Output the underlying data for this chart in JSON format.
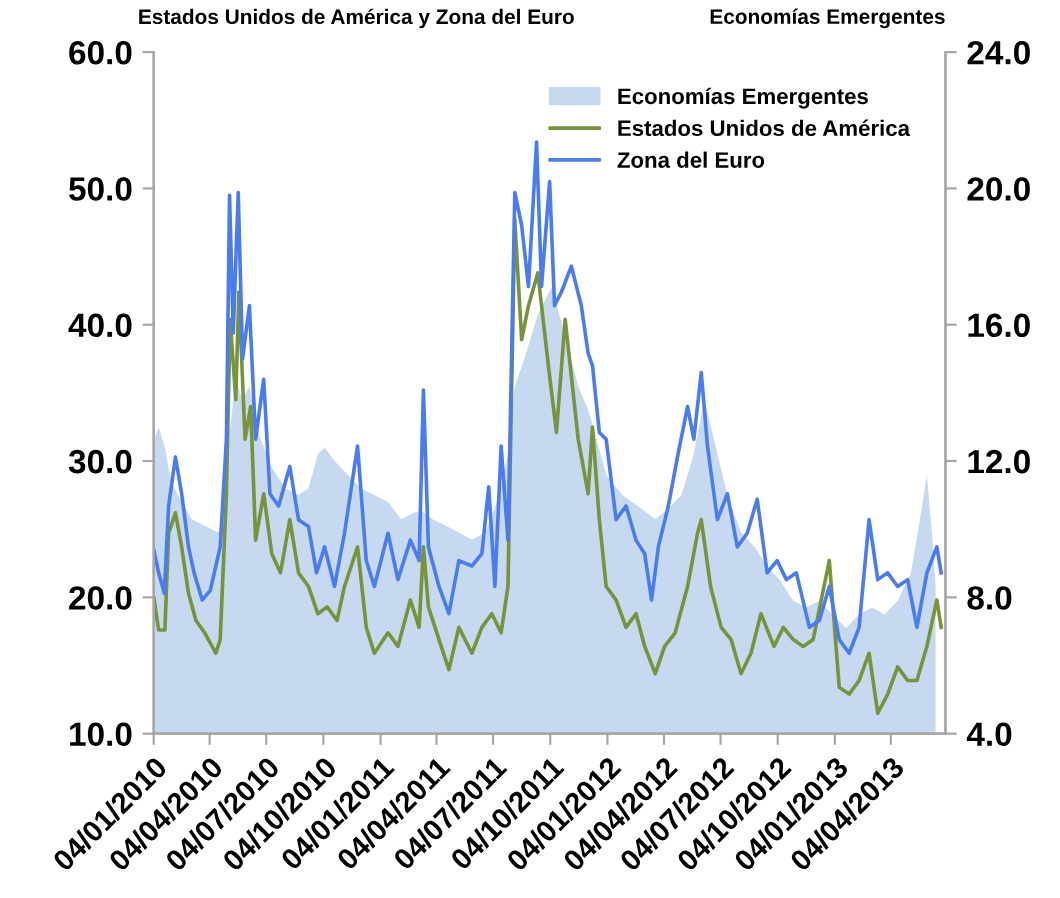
{
  "chart_data": {
    "type": "line",
    "ylabel": "Estados Unidos de América y Zona del Euro",
    "y2label": "Economías Emergentes",
    "xlim": [
      "2010-01-04",
      "2013-07-01"
    ],
    "xticks": [
      {
        "value": "2010-01-04",
        "label": "04/01/2010"
      },
      {
        "value": "2010-04-04",
        "label": "04/04/2010"
      },
      {
        "value": "2010-07-04",
        "label": "04/07/2010"
      },
      {
        "value": "2010-10-04",
        "label": "04/10/2010"
      },
      {
        "value": "2011-01-04",
        "label": "04/01/2011"
      },
      {
        "value": "2011-04-04",
        "label": "04/04/2011"
      },
      {
        "value": "2011-07-04",
        "label": "04/07/2011"
      },
      {
        "value": "2011-10-04",
        "label": "04/10/2011"
      },
      {
        "value": "2012-01-04",
        "label": "04/01/2012"
      },
      {
        "value": "2012-04-04",
        "label": "04/04/2012"
      },
      {
        "value": "2012-07-04",
        "label": "04/07/2012"
      },
      {
        "value": "2012-10-04",
        "label": "04/10/2012"
      },
      {
        "value": "2013-01-04",
        "label": "04/01/2013"
      },
      {
        "value": "2013-04-04",
        "label": "04/04/2013"
      }
    ],
    "ylim": [
      10,
      60
    ],
    "yticks": [
      {
        "value": 10,
        "label": "10.0"
      },
      {
        "value": 20,
        "label": "20.0"
      },
      {
        "value": 30,
        "label": "30.0"
      },
      {
        "value": 40,
        "label": "40.0"
      },
      {
        "value": 50,
        "label": "50.0"
      },
      {
        "value": 60,
        "label": "60.0"
      }
    ],
    "y2lim": [
      4,
      24
    ],
    "y2ticks": [
      {
        "value": 4,
        "label": "4.0"
      },
      {
        "value": 8,
        "label": "8.0"
      },
      {
        "value": 12,
        "label": "12.0"
      },
      {
        "value": 16,
        "label": "16.0"
      },
      {
        "value": 20,
        "label": "20.0"
      },
      {
        "value": 24,
        "label": "24.0"
      }
    ],
    "grid": false,
    "legend": "top right",
    "marker": "none",
    "line_style": "solid",
    "series": [
      {
        "name": "Economías Emergentes",
        "type": "area",
        "axis": "y2",
        "color": "#c6d9f0",
        "x": [
          "2010-01-04",
          "2010-01-12",
          "2010-01-22",
          "2010-02-01",
          "2010-02-18",
          "2010-03-06",
          "2010-03-27",
          "2010-04-18",
          "2010-04-28",
          "2010-05-06",
          "2010-05-16",
          "2010-05-27",
          "2010-06-07",
          "2010-06-22",
          "2010-07-13",
          "2010-08-04",
          "2010-08-25",
          "2010-09-10",
          "2010-09-25",
          "2010-10-06",
          "2010-10-22",
          "2010-11-12",
          "2010-12-03",
          "2010-12-25",
          "2011-01-16",
          "2011-02-06",
          "2011-02-28",
          "2011-03-14",
          "2011-03-28",
          "2011-04-19",
          "2011-05-10",
          "2011-05-31",
          "2011-06-22",
          "2011-07-14",
          "2011-07-28",
          "2011-08-08",
          "2011-08-25",
          "2011-09-14",
          "2011-10-06",
          "2011-10-28",
          "2011-11-18",
          "2011-12-06",
          "2012-01-02",
          "2012-01-28",
          "2012-02-28",
          "2012-03-21",
          "2012-04-11",
          "2012-05-02",
          "2012-05-22",
          "2012-06-08",
          "2012-06-24",
          "2012-07-15",
          "2012-08-06",
          "2012-08-27",
          "2012-09-17",
          "2012-10-08",
          "2012-10-29",
          "2012-11-19",
          "2012-12-10",
          "2012-12-31",
          "2013-01-22",
          "2013-02-12",
          "2013-03-05",
          "2013-03-25",
          "2013-04-15",
          "2013-05-06",
          "2013-05-21",
          "2013-06-01",
          "2013-06-09",
          "2013-06-15"
        ],
        "values": [
          12.6,
          13.0,
          12.4,
          11.4,
          10.8,
          10.3,
          10.1,
          9.9,
          10.6,
          12.8,
          14.4,
          13.8,
          14.2,
          12.8,
          11.8,
          11.2,
          11.0,
          11.2,
          12.2,
          12.4,
          12.0,
          11.6,
          11.2,
          11.0,
          10.8,
          10.3,
          10.5,
          10.5,
          10.3,
          10.1,
          9.9,
          9.7,
          9.9,
          11.0,
          12.2,
          14.2,
          15.1,
          16.3,
          17.1,
          15.7,
          14.2,
          13.4,
          11.6,
          11.0,
          10.6,
          10.3,
          10.6,
          11.0,
          12.2,
          13.8,
          12.6,
          11.0,
          9.9,
          9.5,
          8.9,
          8.5,
          7.9,
          7.7,
          7.9,
          7.5,
          7.1,
          7.5,
          7.7,
          7.5,
          7.9,
          8.7,
          10.3,
          11.6,
          9.9,
          8.3
        ]
      },
      {
        "name": "Estados Unidos de América",
        "color": "#77933c",
        "x": [
          "2010-01-04",
          "2010-01-12",
          "2010-01-22",
          "2010-01-28",
          "2010-02-08",
          "2010-02-18",
          "2010-03-01",
          "2010-03-13",
          "2010-03-27",
          "2010-04-14",
          "2010-04-21",
          "2010-05-01",
          "2010-05-07",
          "2010-05-16",
          "2010-05-21",
          "2010-05-31",
          "2010-06-09",
          "2010-06-17",
          "2010-06-30",
          "2010-07-13",
          "2010-07-27",
          "2010-08-11",
          "2010-08-25",
          "2010-09-10",
          "2010-09-25",
          "2010-10-10",
          "2010-10-26",
          "2010-11-07",
          "2010-11-28",
          "2010-12-12",
          "2010-12-25",
          "2011-01-16",
          "2011-02-01",
          "2011-02-21",
          "2011-03-07",
          "2011-03-14",
          "2011-03-22",
          "2011-04-08",
          "2011-04-24",
          "2011-05-10",
          "2011-05-31",
          "2011-06-16",
          "2011-07-02",
          "2011-07-17",
          "2011-07-28",
          "2011-08-08",
          "2011-08-19",
          "2011-08-30",
          "2011-09-14",
          "2011-10-01",
          "2011-10-14",
          "2011-10-28",
          "2011-11-18",
          "2011-12-04",
          "2011-12-11",
          "2011-12-22",
          "2012-01-02",
          "2012-01-18",
          "2012-02-03",
          "2012-02-19",
          "2012-03-04",
          "2012-03-21",
          "2012-04-05",
          "2012-04-22",
          "2012-05-12",
          "2012-05-28",
          "2012-06-03",
          "2012-06-18",
          "2012-07-05",
          "2012-07-21",
          "2012-08-06",
          "2012-08-22",
          "2012-09-07",
          "2012-09-28",
          "2012-10-13",
          "2012-10-29",
          "2012-11-14",
          "2012-11-30",
          "2012-12-26",
          "2013-01-11",
          "2013-01-27",
          "2013-02-12",
          "2013-02-28",
          "2013-03-14",
          "2013-03-30",
          "2013-04-15",
          "2013-05-01",
          "2013-05-16",
          "2013-06-01",
          "2013-06-17",
          "2013-06-24"
        ],
        "values": [
          20.0,
          17.6,
          17.6,
          24.7,
          26.2,
          23.7,
          20.3,
          18.3,
          17.4,
          15.9,
          16.9,
          27.6,
          40.4,
          34.5,
          42.4,
          31.6,
          34.0,
          24.2,
          27.6,
          23.2,
          21.8,
          25.7,
          21.8,
          20.8,
          18.8,
          19.3,
          18.3,
          20.8,
          23.7,
          17.8,
          15.9,
          17.4,
          16.4,
          19.8,
          17.8,
          23.7,
          19.3,
          16.9,
          14.7,
          17.8,
          15.9,
          17.8,
          18.8,
          17.4,
          20.8,
          47.7,
          38.9,
          41.4,
          43.8,
          37.0,
          32.1,
          40.4,
          31.6,
          27.6,
          32.5,
          25.7,
          20.8,
          19.8,
          17.8,
          18.8,
          16.4,
          14.4,
          16.4,
          17.4,
          20.8,
          24.7,
          25.7,
          20.8,
          17.8,
          16.9,
          14.4,
          15.9,
          18.8,
          16.4,
          17.8,
          16.9,
          16.4,
          16.9,
          22.7,
          13.4,
          12.9,
          13.9,
          15.9,
          11.5,
          12.9,
          14.9,
          13.9,
          13.9,
          16.4,
          19.8,
          17.8
        ]
      },
      {
        "name": "Zona del Euro",
        "color": "#4a7cf0",
        "x": [
          "2010-01-04",
          "2010-01-12",
          "2010-01-21",
          "2010-01-28",
          "2010-02-08",
          "2010-02-18",
          "2010-03-01",
          "2010-03-10",
          "2010-03-23",
          "2010-04-05",
          "2010-04-21",
          "2010-05-01",
          "2010-05-06",
          "2010-05-12",
          "2010-05-20",
          "2010-05-27",
          "2010-06-07",
          "2010-06-17",
          "2010-06-30",
          "2010-07-10",
          "2010-07-24",
          "2010-08-11",
          "2010-08-25",
          "2010-09-10",
          "2010-09-23",
          "2010-10-06",
          "2010-10-22",
          "2010-11-07",
          "2010-11-28",
          "2010-12-12",
          "2010-12-25",
          "2011-01-16",
          "2011-02-01",
          "2011-02-21",
          "2011-03-07",
          "2011-03-14",
          "2011-03-22",
          "2011-04-08",
          "2011-04-24",
          "2011-05-10",
          "2011-05-31",
          "2011-06-16",
          "2011-06-27",
          "2011-07-07",
          "2011-07-17",
          "2011-07-28",
          "2011-08-08",
          "2011-08-19",
          "2011-08-30",
          "2011-09-12",
          "2011-09-20",
          "2011-10-03",
          "2011-10-11",
          "2011-10-22",
          "2011-11-07",
          "2011-11-23",
          "2011-12-04",
          "2011-12-11",
          "2011-12-22",
          "2012-01-02",
          "2012-01-18",
          "2012-02-03",
          "2012-02-19",
          "2012-03-04",
          "2012-03-15",
          "2012-03-26",
          "2012-04-11",
          "2012-04-27",
          "2012-05-12",
          "2012-05-22",
          "2012-06-03",
          "2012-06-13",
          "2012-06-29",
          "2012-07-15",
          "2012-07-31",
          "2012-08-16",
          "2012-09-01",
          "2012-09-17",
          "2012-10-03",
          "2012-10-18",
          "2012-11-03",
          "2012-11-24",
          "2012-12-10",
          "2012-12-26",
          "2013-01-11",
          "2013-01-27",
          "2013-02-12",
          "2013-02-28",
          "2013-03-14",
          "2013-03-30",
          "2013-04-15",
          "2013-05-01",
          "2013-05-16",
          "2013-06-01",
          "2013-06-17",
          "2013-06-24"
        ],
        "values": [
          23.5,
          21.8,
          20.3,
          26.7,
          30.3,
          27.6,
          23.7,
          21.8,
          19.8,
          20.5,
          23.7,
          31.6,
          49.5,
          39.4,
          49.7,
          37.5,
          41.4,
          31.6,
          36.0,
          27.6,
          26.7,
          29.6,
          25.7,
          25.2,
          21.8,
          23.7,
          20.8,
          24.7,
          31.1,
          22.7,
          20.8,
          24.7,
          21.3,
          24.2,
          22.7,
          35.2,
          23.7,
          20.8,
          18.8,
          22.7,
          22.3,
          23.2,
          28.1,
          20.8,
          31.1,
          24.2,
          49.7,
          47.3,
          42.8,
          53.4,
          42.8,
          50.5,
          41.4,
          42.4,
          44.3,
          41.4,
          37.9,
          37.0,
          32.1,
          31.6,
          25.7,
          26.7,
          24.2,
          23.2,
          19.8,
          23.7,
          26.7,
          30.6,
          34.0,
          31.6,
          36.5,
          31.1,
          25.7,
          27.6,
          23.7,
          24.7,
          27.2,
          21.8,
          22.7,
          21.3,
          21.8,
          17.8,
          18.3,
          20.8,
          16.9,
          15.9,
          17.8,
          25.7,
          21.3,
          21.8,
          20.8,
          21.3,
          17.8,
          21.8,
          23.7,
          21.8
        ]
      }
    ]
  }
}
